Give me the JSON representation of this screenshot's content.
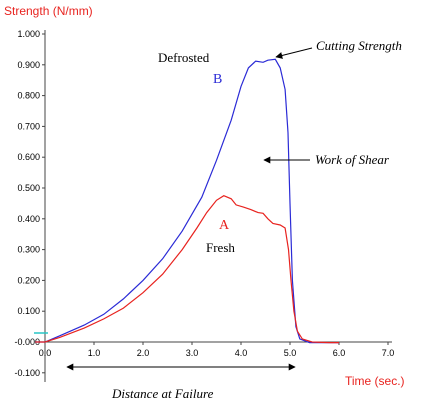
{
  "chart_data": {
    "type": "line",
    "ylabel": "Strength (N/mm)",
    "xlabel": "Time (sec.)",
    "xlim": [
      0.0,
      7.0
    ],
    "ylim": [
      -0.1,
      1.0
    ],
    "xticks": [
      "0.0",
      "1.0",
      "2.0",
      "3.0",
      "4.0",
      "5.0",
      "6.0",
      "7.0"
    ],
    "yticks": [
      "1.000",
      "0.900",
      "0.800",
      "0.700",
      "0.600",
      "0.500",
      "0.400",
      "0.300",
      "0.200",
      "0.100",
      "-0.000",
      "-0.100"
    ],
    "grid": false,
    "series": [
      {
        "label": "B",
        "sample": "Defrosted",
        "color": "#2b2bd6",
        "points": [
          [
            -0.2,
            0.0
          ],
          [
            0.0,
            0.0
          ],
          [
            0.3,
            0.02
          ],
          [
            0.8,
            0.055
          ],
          [
            1.2,
            0.09
          ],
          [
            1.6,
            0.14
          ],
          [
            2.0,
            0.2
          ],
          [
            2.4,
            0.27
          ],
          [
            2.8,
            0.36
          ],
          [
            3.2,
            0.47
          ],
          [
            3.5,
            0.59
          ],
          [
            3.8,
            0.72
          ],
          [
            4.0,
            0.83
          ],
          [
            4.15,
            0.89
          ],
          [
            4.3,
            0.912
          ],
          [
            4.45,
            0.908
          ],
          [
            4.55,
            0.915
          ],
          [
            4.7,
            0.918
          ],
          [
            4.8,
            0.89
          ],
          [
            4.9,
            0.82
          ],
          [
            4.96,
            0.68
          ],
          [
            5.0,
            0.45
          ],
          [
            5.05,
            0.2
          ],
          [
            5.12,
            0.05
          ],
          [
            5.2,
            0.01
          ],
          [
            5.4,
            -0.002
          ],
          [
            6.0,
            -0.002
          ]
        ]
      },
      {
        "label": "A",
        "sample": "Fresh",
        "color": "#e8231f",
        "points": [
          [
            -0.2,
            0.0
          ],
          [
            0.0,
            0.0
          ],
          [
            0.3,
            0.015
          ],
          [
            0.8,
            0.045
          ],
          [
            1.2,
            0.075
          ],
          [
            1.6,
            0.11
          ],
          [
            2.0,
            0.16
          ],
          [
            2.4,
            0.22
          ],
          [
            2.8,
            0.3
          ],
          [
            3.1,
            0.37
          ],
          [
            3.3,
            0.42
          ],
          [
            3.5,
            0.46
          ],
          [
            3.65,
            0.475
          ],
          [
            3.8,
            0.465
          ],
          [
            3.9,
            0.445
          ],
          [
            4.05,
            0.438
          ],
          [
            4.2,
            0.43
          ],
          [
            4.35,
            0.42
          ],
          [
            4.45,
            0.418
          ],
          [
            4.55,
            0.4
          ],
          [
            4.65,
            0.385
          ],
          [
            4.8,
            0.38
          ],
          [
            4.9,
            0.37
          ],
          [
            4.97,
            0.3
          ],
          [
            5.02,
            0.2
          ],
          [
            5.08,
            0.1
          ],
          [
            5.15,
            0.035
          ],
          [
            5.25,
            0.01
          ],
          [
            5.45,
            0.0
          ],
          [
            5.8,
            -0.002
          ],
          [
            6.0,
            -0.002
          ]
        ]
      }
    ],
    "annotations": {
      "cutting_strength": "Cutting Strength",
      "work_of_shear": "Work of Shear",
      "distance_at_failure": "Distance at Failure"
    }
  }
}
